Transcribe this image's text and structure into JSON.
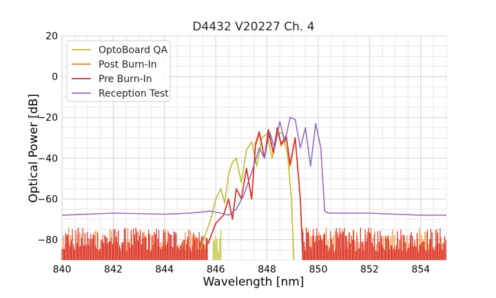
{
  "chart_data": {
    "type": "line",
    "title": "D4432 V20227 Ch. 4",
    "xlabel": "Wavelength [nm]",
    "ylabel": "Optical Power [dB]",
    "xlim": [
      840,
      855
    ],
    "ylim": [
      -90,
      20
    ],
    "x_ticks": [
      "840",
      "842",
      "844",
      "846",
      "848",
      "850",
      "852",
      "854"
    ],
    "y_ticks": [
      "20",
      "0",
      "−20",
      "−40",
      "−60",
      "−80"
    ],
    "grid": true,
    "legend_position": "top-left",
    "series": [
      {
        "name": "OptoBoard QA",
        "color": "#bcbd22",
        "x": [
          845.4,
          845.8,
          846.0,
          846.2,
          846.35,
          846.5,
          846.65,
          846.8,
          847.0,
          847.2,
          847.4,
          847.6,
          847.8,
          848.0,
          848.2,
          848.4,
          848.6,
          848.8,
          848.95,
          849.05
        ],
        "y": [
          -85,
          -70,
          -60,
          -55,
          -62,
          -48,
          -42,
          -40,
          -52,
          -36,
          -32,
          -44,
          -30,
          -28,
          -40,
          -27,
          -28,
          -38,
          -60,
          -90
        ]
      },
      {
        "name": "Post Burn-In",
        "color": "#ff7f0e",
        "x": [
          845.7,
          846.0,
          846.3,
          846.5,
          846.65,
          846.8,
          847.0,
          847.2,
          847.4,
          847.55,
          847.7,
          847.9,
          848.05,
          848.25,
          848.4,
          848.55,
          848.75,
          848.9,
          849.1,
          849.3,
          849.4
        ],
        "y": [
          -82,
          -72,
          -68,
          -60,
          -70,
          -55,
          -60,
          -45,
          -60,
          -34,
          -28,
          -40,
          -27,
          -38,
          -26,
          -34,
          -30,
          -44,
          -30,
          -60,
          -90
        ]
      },
      {
        "name": "Pre Burn-In",
        "color": "#d62728",
        "x": [
          845.7,
          846.0,
          846.3,
          846.5,
          846.65,
          846.8,
          847.0,
          847.2,
          847.4,
          847.55,
          847.7,
          847.9,
          848.05,
          848.25,
          848.4,
          848.55,
          848.75,
          848.9,
          849.1,
          849.3,
          849.4
        ],
        "y": [
          -82,
          -72,
          -68,
          -60,
          -70,
          -55,
          -60,
          -45,
          -60,
          -33,
          -27,
          -40,
          -26,
          -37,
          -25,
          -33,
          -29,
          -43,
          -30,
          -60,
          -90
        ]
      },
      {
        "name": "Reception Test",
        "color": "#9467bd",
        "x": [
          840.0,
          842.0,
          844.0,
          845.0,
          845.8,
          846.2,
          846.5,
          846.8,
          847.1,
          847.4,
          847.7,
          847.9,
          848.1,
          848.3,
          848.5,
          848.7,
          848.9,
          849.1,
          849.3,
          849.5,
          849.7,
          849.9,
          850.1,
          850.25,
          850.4,
          852.0,
          854.0,
          855.0
        ],
        "y": [
          -68,
          -67,
          -67.5,
          -67,
          -66,
          -67,
          -68,
          -65,
          -58,
          -47,
          -35,
          -40,
          -27,
          -35,
          -22,
          -32,
          -20,
          -21,
          -35,
          -25,
          -44,
          -23,
          -35,
          -66,
          -67,
          -67,
          -68,
          -68
        ]
      }
    ]
  }
}
